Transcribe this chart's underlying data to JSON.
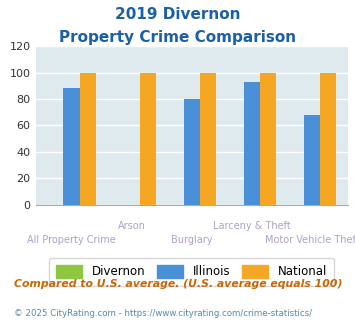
{
  "title_line1": "2019 Divernon",
  "title_line2": "Property Crime Comparison",
  "categories": [
    "All Property Crime",
    "Arson",
    "Burglary",
    "Larceny & Theft",
    "Motor Vehicle Theft"
  ],
  "divernon": [
    0,
    0,
    0,
    0,
    0
  ],
  "illinois": [
    88,
    0,
    80,
    93,
    68
  ],
  "national": [
    100,
    100,
    100,
    100,
    100
  ],
  "bar_colors": {
    "divernon": "#8dc63f",
    "illinois": "#4a90d9",
    "national": "#f5a623"
  },
  "ylim": [
    0,
    120
  ],
  "yticks": [
    0,
    20,
    40,
    60,
    80,
    100,
    120
  ],
  "bg_color": "#deeaed",
  "grid_color": "#ffffff",
  "title_color": "#1a5fa8",
  "xlabel_color_top": "#b0a0c8",
  "xlabel_color_bot": "#b0a0c8",
  "footnote1": "Compared to U.S. average. (U.S. average equals 100)",
  "footnote2": "© 2025 CityRating.com - https://www.cityrating.com/crime-statistics/",
  "footnote1_color": "#cc6600",
  "footnote2_color": "#5588aa",
  "legend_labels": [
    "Divernon",
    "Illinois",
    "National"
  ],
  "row1_labels": [
    "",
    "Arson",
    "",
    "Larceny & Theft",
    ""
  ],
  "row2_labels": [
    "All Property Crime",
    "",
    "Burglary",
    "",
    "Motor Vehicle Theft"
  ]
}
